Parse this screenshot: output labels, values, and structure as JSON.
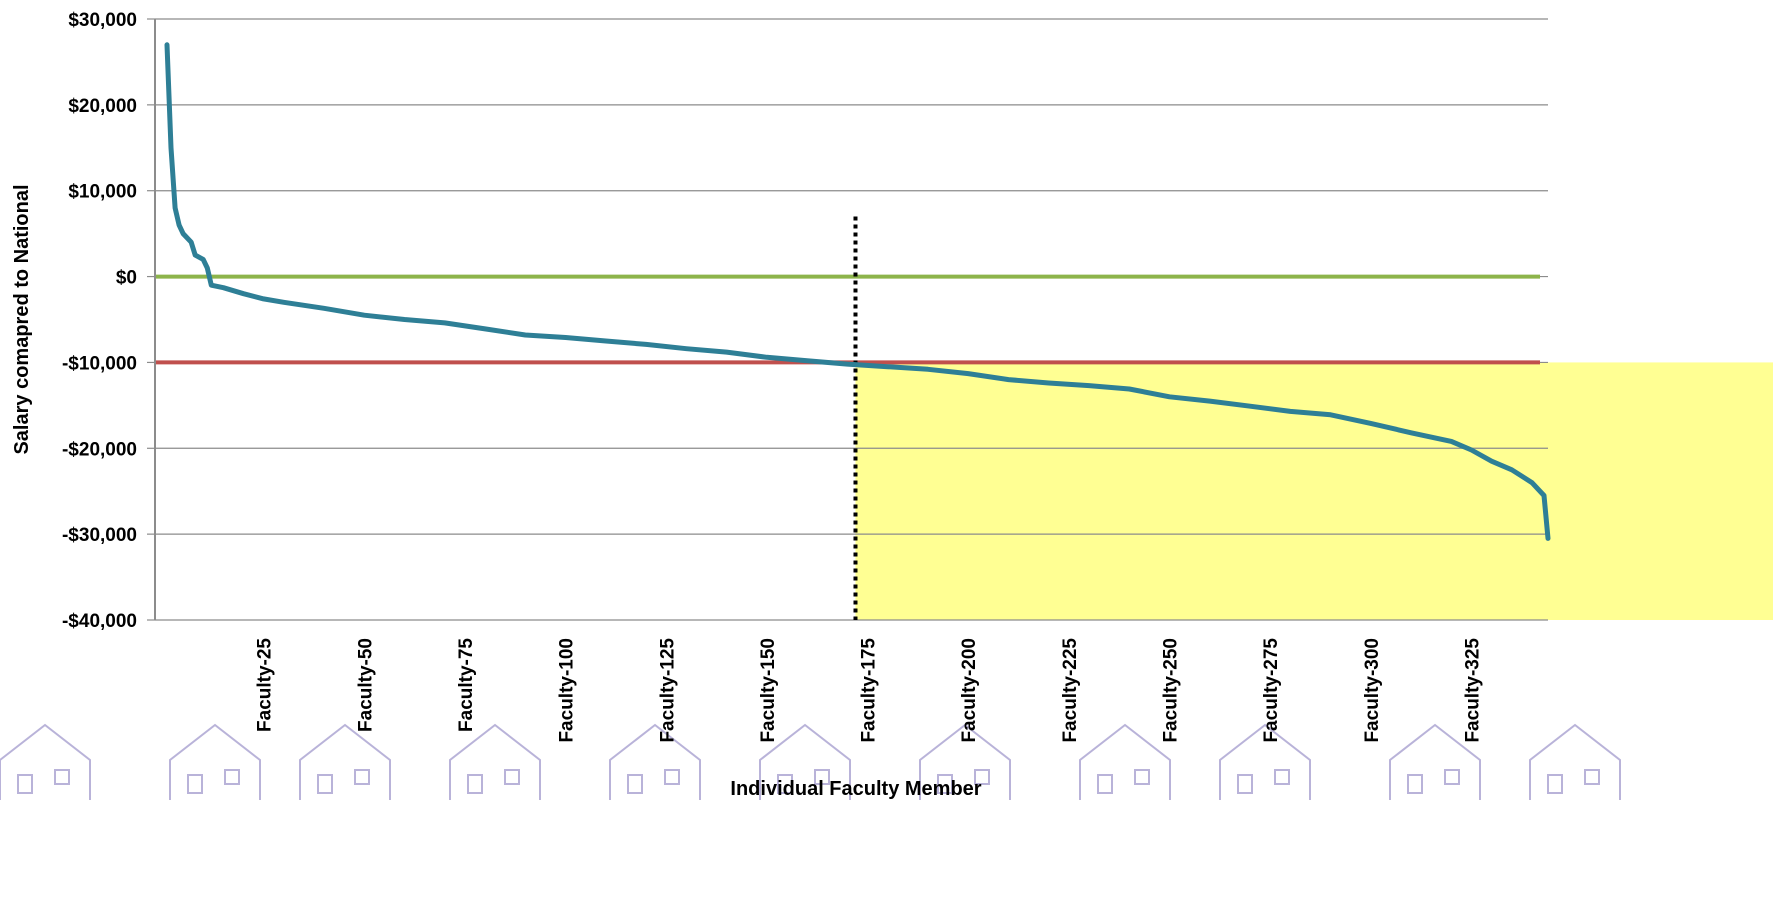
{
  "chart_data": {
    "type": "line",
    "xlabel": "Individual Faculty Member",
    "ylabel": "Salary comapred to National",
    "ylim": [
      -40000,
      30000
    ],
    "y_ticks": [
      30000,
      20000,
      10000,
      0,
      -10000,
      -20000,
      -30000,
      -40000
    ],
    "y_tick_labels": [
      "$30,000",
      "$20,000",
      "$10,000",
      "$0",
      "-$10,000",
      "-$20,000",
      "-$30,000",
      "-$40,000"
    ],
    "x_count": 344,
    "x_tick_positions": [
      25,
      50,
      75,
      100,
      125,
      150,
      175,
      200,
      225,
      250,
      275,
      300,
      325
    ],
    "x_tick_labels": [
      "Faculty-25",
      "Faculty-50",
      "Faculty-75",
      "Faculty-100",
      "Faculty-125",
      "Faculty-150",
      "Faculty-175",
      "Faculty-200",
      "Faculty-225",
      "Faculty-250",
      "Faculty-275",
      "Faculty-300",
      "Faculty-325"
    ],
    "grid": true,
    "series": [
      {
        "color": "#2e7f96",
        "points": [
          [
            1,
            27000
          ],
          [
            2,
            15000
          ],
          [
            3,
            8000
          ],
          [
            4,
            6000
          ],
          [
            5,
            5000
          ],
          [
            7,
            4000
          ],
          [
            8,
            2500
          ],
          [
            10,
            2000
          ],
          [
            11,
            1000
          ],
          [
            12,
            -1000
          ],
          [
            15,
            -1300
          ],
          [
            20,
            -2000
          ],
          [
            25,
            -2600
          ],
          [
            30,
            -3000
          ],
          [
            40,
            -3700
          ],
          [
            50,
            -4500
          ],
          [
            60,
            -5000
          ],
          [
            70,
            -5400
          ],
          [
            80,
            -6100
          ],
          [
            90,
            -6800
          ],
          [
            100,
            -7100
          ],
          [
            110,
            -7500
          ],
          [
            120,
            -7900
          ],
          [
            130,
            -8400
          ],
          [
            140,
            -8800
          ],
          [
            150,
            -9400
          ],
          [
            160,
            -9800
          ],
          [
            170,
            -10200
          ],
          [
            180,
            -10500
          ],
          [
            190,
            -10800
          ],
          [
            200,
            -11300
          ],
          [
            210,
            -12000
          ],
          [
            220,
            -12400
          ],
          [
            230,
            -12700
          ],
          [
            240,
            -13100
          ],
          [
            250,
            -14000
          ],
          [
            260,
            -14500
          ],
          [
            270,
            -15100
          ],
          [
            280,
            -15700
          ],
          [
            290,
            -16100
          ],
          [
            300,
            -17100
          ],
          [
            310,
            -18200
          ],
          [
            320,
            -19200
          ],
          [
            325,
            -20200
          ],
          [
            330,
            -21500
          ],
          [
            335,
            -22500
          ],
          [
            340,
            -24000
          ],
          [
            343,
            -25500
          ],
          [
            344,
            -30500
          ]
        ]
      }
    ],
    "reference_lines": [
      {
        "y": 0,
        "color": "#8db44b"
      },
      {
        "y": -10000,
        "color": "#c0504d"
      }
    ],
    "vertical_marker": {
      "x": 172,
      "y_top": 7000,
      "color": "#000000",
      "style": "dotted"
    },
    "highlight_region": {
      "x_start": 172,
      "y_top": -10000,
      "y_bottom": -40000,
      "color": "#ffff80"
    }
  }
}
